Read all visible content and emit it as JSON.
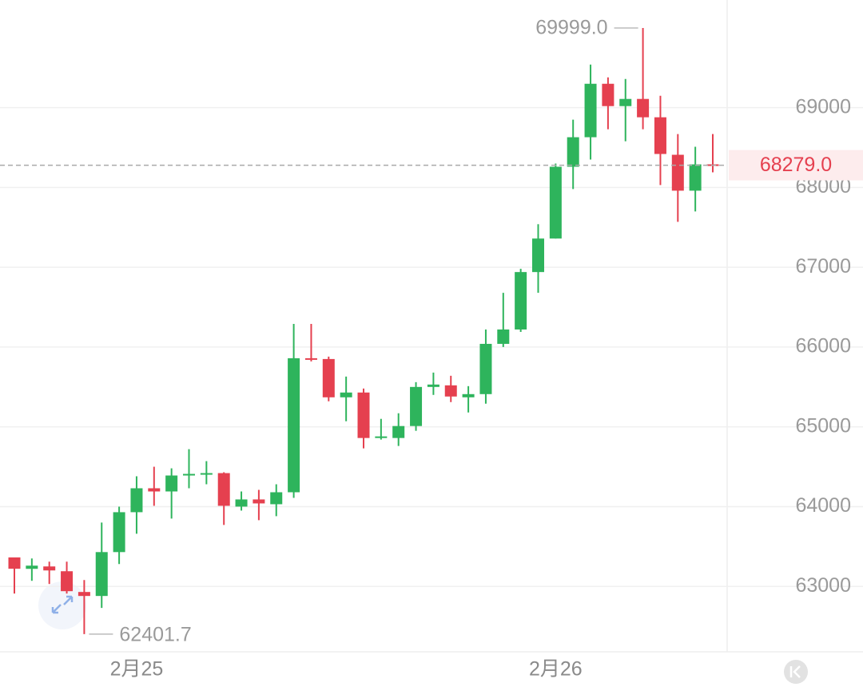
{
  "chart_data": {
    "type": "candlestick",
    "categories": [
      null,
      null,
      null,
      null,
      null,
      null,
      null,
      "2月25",
      null,
      null,
      null,
      null,
      null,
      null,
      null,
      null,
      null,
      null,
      null,
      null,
      null,
      null,
      null,
      null,
      null,
      null,
      null,
      null,
      null,
      null,
      null,
      "2月26",
      null,
      null,
      null,
      null,
      null,
      null,
      null,
      null,
      null
    ],
    "open": [
      63363,
      63220,
      63250,
      63190,
      62930,
      62880,
      63430,
      63930,
      64230,
      64190,
      64390,
      64400,
      64420,
      64000,
      64090,
      64030,
      64180,
      65860,
      65850,
      65370,
      65430,
      64860,
      64860,
      65010,
      65500,
      65520,
      65370,
      65410,
      66040,
      66220,
      66940,
      67360,
      68260,
      68630,
      69300,
      69020,
      69110,
      68880,
      68410,
      67960,
      68290
    ],
    "high": [
      63363,
      63350,
      63310,
      63310,
      63080,
      63800,
      64000,
      64380,
      64500,
      64480,
      64720,
      64570,
      64430,
      64190,
      64210,
      64280,
      66290,
      66290,
      65880,
      65630,
      65480,
      65100,
      65170,
      65560,
      65680,
      65640,
      65510,
      66220,
      66680,
      66980,
      67540,
      68300,
      68850,
      69540,
      69380,
      69360,
      69999,
      69150,
      68670,
      68510,
      68670
    ],
    "low": [
      62910,
      63070,
      63030,
      62910,
      62401.7,
      62730,
      63280,
      63660,
      64010,
      63850,
      64230,
      64280,
      63770,
      63950,
      63830,
      63880,
      64110,
      65820,
      65320,
      65070,
      64730,
      64840,
      64760,
      64950,
      65400,
      65310,
      65180,
      65290,
      66000,
      66190,
      66680,
      67360,
      67980,
      68350,
      68730,
      68580,
      68730,
      68030,
      67570,
      67700,
      68190
    ],
    "close": [
      63221,
      63260,
      63200,
      62940,
      62880,
      63430,
      63930,
      64230,
      64190,
      64390,
      64410,
      64420,
      64010,
      64090,
      64040,
      64180,
      65860,
      65840,
      65370,
      65430,
      64860,
      64880,
      65010,
      65500,
      65530,
      65380,
      65410,
      66040,
      66220,
      66940,
      67360,
      68260,
      68630,
      69300,
      69020,
      69110,
      68880,
      68420,
      67960,
      68290,
      68279
    ],
    "up_color": "#2eb45c",
    "down_color": "#e5404f",
    "ylim": [
      62180,
      70350
    ],
    "yticks": [
      63000,
      64000,
      65000,
      66000,
      67000,
      68000,
      69000
    ],
    "grid": true,
    "max_annotation": {
      "value": 69999,
      "label": "69999.0"
    },
    "min_annotation": {
      "value": 62401.7,
      "label": "62401.7"
    },
    "last_price": {
      "value": 68279,
      "label": "68279.0"
    }
  }
}
